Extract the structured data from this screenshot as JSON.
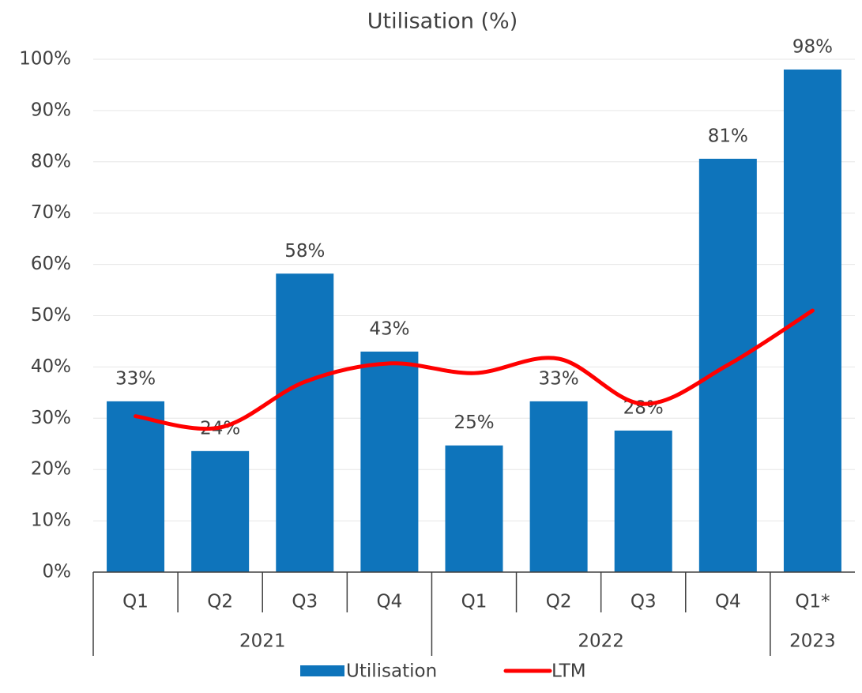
{
  "chart_data": {
    "type": "bar",
    "title": "Utilisation (%)",
    "groups": [
      {
        "name": "2021",
        "categories": [
          "Q1",
          "Q2",
          "Q3",
          "Q4"
        ]
      },
      {
        "name": "2022",
        "categories": [
          "Q1",
          "Q2",
          "Q3",
          "Q4"
        ]
      },
      {
        "name": "2023",
        "categories": [
          "Q1*"
        ]
      }
    ],
    "series": [
      {
        "name": "Utilisation",
        "type": "bar",
        "color": "#0e74bb",
        "values": [
          33.3,
          23.6,
          58.2,
          43.0,
          24.7,
          33.3,
          27.6,
          80.6,
          98.0
        ],
        "value_labels": [
          "33%",
          "24%",
          "58%",
          "43%",
          "25%",
          "33%",
          "28%",
          "81%",
          "98%"
        ]
      },
      {
        "name": "LTM",
        "type": "line",
        "color": "#ff0000",
        "smooth": true,
        "values": [
          30.4,
          28.2,
          37.1,
          40.7,
          38.8,
          41.6,
          32.8,
          40.4,
          51.0
        ]
      }
    ],
    "ylim": [
      0,
      100
    ],
    "yticks": [
      {
        "value": 0,
        "label": "0%"
      },
      {
        "value": 10,
        "label": "10%"
      },
      {
        "value": 20,
        "label": "20%"
      },
      {
        "value": 30,
        "label": "30%"
      },
      {
        "value": 40,
        "label": "40%"
      },
      {
        "value": 50,
        "label": "50%"
      },
      {
        "value": 60,
        "label": "60%"
      },
      {
        "value": 70,
        "label": "70%"
      },
      {
        "value": 80,
        "label": "80%"
      },
      {
        "value": 90,
        "label": "90%"
      },
      {
        "value": 100,
        "label": "100%"
      }
    ],
    "grid": true,
    "legend": "bottom"
  }
}
